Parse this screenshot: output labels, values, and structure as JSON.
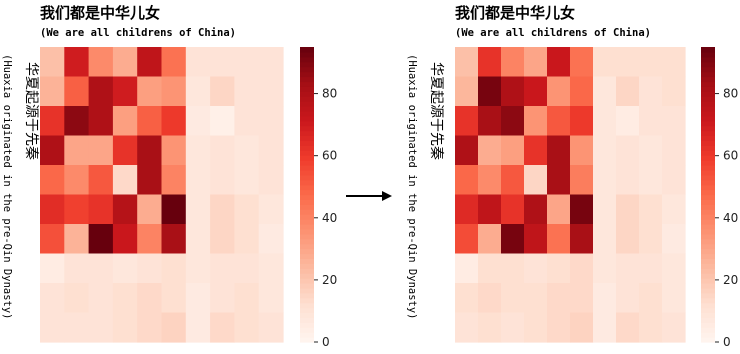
{
  "chart_data": [
    {
      "type": "heatmap",
      "title": "我们都是中华儿女",
      "subtitle": "(We are all childrens of China)",
      "ylabel": "华夏起源于先秦",
      "ylabel_sub": "(Huaxia originated in the pre-Qin Dynasty)",
      "colormap": "Reds",
      "vmin": 0,
      "vmax": 95,
      "colorbar_ticks": [
        0,
        20,
        40,
        60,
        80
      ],
      "rows": 10,
      "cols": 10,
      "values": [
        [
          22,
          70,
          38,
          28,
          75,
          45,
          10,
          10,
          10,
          10
        ],
        [
          26,
          50,
          80,
          70,
          32,
          35,
          8,
          15,
          10,
          10
        ],
        [
          62,
          88,
          80,
          32,
          50,
          60,
          6,
          3,
          10,
          10
        ],
        [
          80,
          30,
          30,
          62,
          82,
          35,
          8,
          10,
          8,
          10
        ],
        [
          48,
          38,
          52,
          14,
          82,
          40,
          8,
          10,
          8,
          10
        ],
        [
          64,
          58,
          62,
          78,
          28,
          95,
          8,
          15,
          12,
          8
        ],
        [
          54,
          26,
          95,
          72,
          40,
          82,
          8,
          15,
          12,
          6
        ],
        [
          5,
          10,
          10,
          8,
          10,
          12,
          8,
          10,
          10,
          8
        ],
        [
          10,
          12,
          10,
          12,
          14,
          12,
          6,
          10,
          12,
          8
        ],
        [
          10,
          10,
          10,
          12,
          14,
          16,
          6,
          14,
          12,
          10
        ]
      ]
    },
    {
      "type": "heatmap",
      "title": "我们都是中华儿女",
      "subtitle": "(We are all childrens of China)",
      "ylabel": "华夏起源于先秦",
      "ylabel_sub": "(Huaxia originated in the pre-Qin Dynasty)",
      "colormap": "Reds",
      "vmin": 0,
      "vmax": 95,
      "colorbar_ticks": [
        0,
        20,
        40,
        60,
        80
      ],
      "rows": 10,
      "cols": 10,
      "values": [
        [
          22,
          62,
          40,
          30,
          72,
          45,
          12,
          12,
          12,
          12
        ],
        [
          25,
          92,
          80,
          72,
          35,
          48,
          8,
          15,
          10,
          12
        ],
        [
          62,
          82,
          88,
          35,
          52,
          60,
          8,
          5,
          10,
          10
        ],
        [
          80,
          28,
          32,
          62,
          82,
          35,
          8,
          10,
          8,
          10
        ],
        [
          48,
          38,
          52,
          15,
          82,
          42,
          8,
          10,
          8,
          10
        ],
        [
          65,
          75,
          62,
          80,
          30,
          92,
          8,
          15,
          12,
          8
        ],
        [
          55,
          28,
          92,
          75,
          45,
          82,
          8,
          15,
          12,
          6
        ],
        [
          5,
          12,
          12,
          10,
          12,
          14,
          8,
          10,
          10,
          8
        ],
        [
          12,
          14,
          12,
          12,
          14,
          14,
          6,
          10,
          12,
          8
        ],
        [
          10,
          12,
          10,
          12,
          14,
          16,
          6,
          14,
          12,
          10
        ]
      ]
    }
  ],
  "arrow": "right-arrow-icon"
}
